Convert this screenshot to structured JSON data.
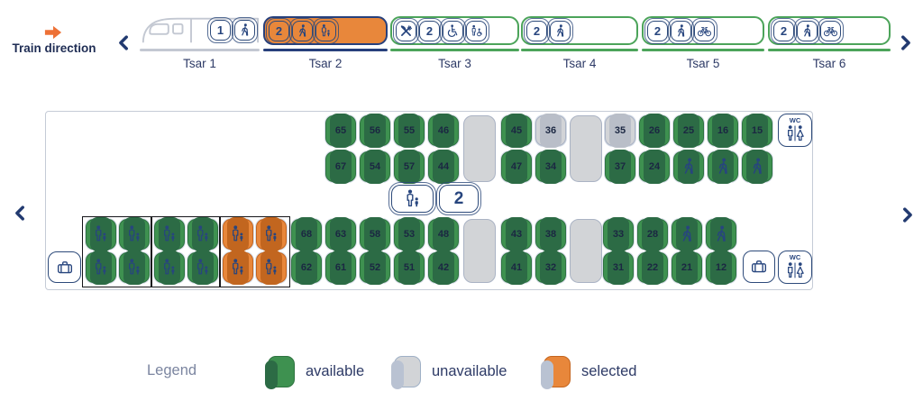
{
  "header": {
    "train_direction_label": "Train direction"
  },
  "colors": {
    "available": "#3E9150",
    "unavailable": "#D2D4D7",
    "selected": "#E8873B",
    "accent_orange": "#ED7136",
    "navy": "#27407C",
    "green_border": "#4CA45A"
  },
  "cars": [
    {
      "label": "Tsar 1",
      "state": "locomotive",
      "badges": [
        {
          "text": "1"
        },
        {
          "icon": "walker"
        }
      ]
    },
    {
      "label": "Tsar 2",
      "state": "selected",
      "badges": [
        {
          "text": "2"
        },
        {
          "icon": "walker"
        },
        {
          "icon": "adult-child"
        }
      ]
    },
    {
      "label": "Tsar 3",
      "state": "available",
      "badges": [
        {
          "icon": "restaurant"
        },
        {
          "text": "2"
        },
        {
          "icon": "wheelchair"
        },
        {
          "icon": "wheelchair-assist"
        }
      ]
    },
    {
      "label": "Tsar 4",
      "state": "available",
      "badges": [
        {
          "text": "2"
        },
        {
          "icon": "walker"
        }
      ]
    },
    {
      "label": "Tsar 5",
      "state": "available",
      "badges": [
        {
          "text": "2"
        },
        {
          "icon": "walker"
        },
        {
          "icon": "bicycle"
        }
      ]
    },
    {
      "label": "Tsar 6",
      "state": "available",
      "badges": [
        {
          "text": "2"
        },
        {
          "icon": "walker"
        },
        {
          "icon": "bicycle"
        }
      ]
    }
  ],
  "seat_map": {
    "class_badge_number": "2",
    "wc_label": "WC",
    "cells": [
      {
        "grid": "t",
        "row": 1,
        "col": 0,
        "type": "num",
        "num": "65",
        "state": "available"
      },
      {
        "grid": "t",
        "row": 1,
        "col": 1,
        "type": "num",
        "num": "56",
        "state": "available"
      },
      {
        "grid": "t",
        "row": 1,
        "col": 2,
        "type": "num",
        "num": "55",
        "state": "available"
      },
      {
        "grid": "t",
        "row": 1,
        "col": 3,
        "type": "num",
        "num": "46",
        "state": "available"
      },
      {
        "grid": "t",
        "row": 1,
        "col": 5,
        "type": "num",
        "num": "45",
        "state": "available"
      },
      {
        "grid": "t",
        "row": 1,
        "col": 6,
        "type": "num",
        "num": "36",
        "state": "unavailable"
      },
      {
        "grid": "t",
        "row": 1,
        "col": 8,
        "type": "num",
        "num": "35",
        "state": "unavailable"
      },
      {
        "grid": "t",
        "row": 1,
        "col": 9,
        "type": "num",
        "num": "26",
        "state": "available"
      },
      {
        "grid": "t",
        "row": 1,
        "col": 10,
        "type": "num",
        "num": "25",
        "state": "available"
      },
      {
        "grid": "t",
        "row": 1,
        "col": 11,
        "type": "num",
        "num": "16",
        "state": "available"
      },
      {
        "grid": "t",
        "row": 1,
        "col": 12,
        "type": "num",
        "num": "15",
        "state": "available"
      },
      {
        "grid": "t",
        "row": 2,
        "col": 0,
        "type": "num",
        "num": "67",
        "state": "available"
      },
      {
        "grid": "t",
        "row": 2,
        "col": 1,
        "type": "num",
        "num": "54",
        "state": "available"
      },
      {
        "grid": "t",
        "row": 2,
        "col": 2,
        "type": "num",
        "num": "57",
        "state": "available"
      },
      {
        "grid": "t",
        "row": 2,
        "col": 3,
        "type": "num",
        "num": "44",
        "state": "available"
      },
      {
        "grid": "t",
        "row": 2,
        "col": 5,
        "type": "num",
        "num": "47",
        "state": "available"
      },
      {
        "grid": "t",
        "row": 2,
        "col": 6,
        "type": "num",
        "num": "34",
        "state": "available"
      },
      {
        "grid": "t",
        "row": 2,
        "col": 8,
        "type": "num",
        "num": "37",
        "state": "available"
      },
      {
        "grid": "t",
        "row": 2,
        "col": 9,
        "type": "num",
        "num": "24",
        "state": "available"
      },
      {
        "grid": "t",
        "row": 2,
        "col": 10,
        "type": "walker",
        "state": "available"
      },
      {
        "grid": "t",
        "row": 2,
        "col": 11,
        "type": "walker",
        "state": "available"
      },
      {
        "grid": "t",
        "row": 2,
        "col": 12,
        "type": "walker",
        "state": "available"
      },
      {
        "grid": "t",
        "row": 1,
        "col": 4,
        "type": "block",
        "span": 2
      },
      {
        "grid": "t",
        "row": 1,
        "col": 7,
        "type": "block",
        "span": 2
      },
      {
        "grid": "f",
        "row": 3,
        "col": 0,
        "type": "family",
        "state": "available"
      },
      {
        "grid": "f",
        "row": 3,
        "col": 1,
        "type": "family",
        "state": "available"
      },
      {
        "grid": "f",
        "row": 3,
        "col": 2,
        "type": "family",
        "state": "available"
      },
      {
        "grid": "f",
        "row": 3,
        "col": 3,
        "type": "family",
        "state": "available"
      },
      {
        "grid": "f",
        "row": 3,
        "col": 4,
        "type": "family",
        "state": "selected"
      },
      {
        "grid": "f",
        "row": 3,
        "col": 5,
        "type": "family",
        "state": "selected"
      },
      {
        "grid": "f",
        "row": 4,
        "col": 0,
        "type": "family",
        "state": "available"
      },
      {
        "grid": "f",
        "row": 4,
        "col": 1,
        "type": "family",
        "state": "available"
      },
      {
        "grid": "f",
        "row": 4,
        "col": 2,
        "type": "family",
        "state": "available"
      },
      {
        "grid": "f",
        "row": 4,
        "col": 3,
        "type": "family",
        "state": "available"
      },
      {
        "grid": "f",
        "row": 4,
        "col": 4,
        "type": "family",
        "state": "selected"
      },
      {
        "grid": "f",
        "row": 4,
        "col": 5,
        "type": "family",
        "state": "selected"
      },
      {
        "grid": "b",
        "row": 3,
        "col": 0,
        "type": "num",
        "num": "68",
        "state": "available"
      },
      {
        "grid": "b",
        "row": 3,
        "col": 1,
        "type": "num",
        "num": "63",
        "state": "available"
      },
      {
        "grid": "b",
        "row": 3,
        "col": 2,
        "type": "num",
        "num": "58",
        "state": "available"
      },
      {
        "grid": "b",
        "row": 3,
        "col": 3,
        "type": "num",
        "num": "53",
        "state": "available"
      },
      {
        "grid": "b",
        "row": 3,
        "col": 4,
        "type": "num",
        "num": "48",
        "state": "available"
      },
      {
        "grid": "b",
        "row": 3,
        "col": 6,
        "type": "num",
        "num": "43",
        "state": "available"
      },
      {
        "grid": "b",
        "row": 3,
        "col": 7,
        "type": "num",
        "num": "38",
        "state": "available"
      },
      {
        "grid": "b",
        "row": 3,
        "col": 9,
        "type": "num",
        "num": "33",
        "state": "available"
      },
      {
        "grid": "b",
        "row": 3,
        "col": 10,
        "type": "num",
        "num": "28",
        "state": "available"
      },
      {
        "grid": "b",
        "row": 3,
        "col": 11,
        "type": "walker",
        "state": "available"
      },
      {
        "grid": "b",
        "row": 3,
        "col": 12,
        "type": "walker",
        "state": "available"
      },
      {
        "grid": "b",
        "row": 4,
        "col": 0,
        "type": "num",
        "num": "62",
        "state": "available"
      },
      {
        "grid": "b",
        "row": 4,
        "col": 1,
        "type": "num",
        "num": "61",
        "state": "available"
      },
      {
        "grid": "b",
        "row": 4,
        "col": 2,
        "type": "num",
        "num": "52",
        "state": "available"
      },
      {
        "grid": "b",
        "row": 4,
        "col": 3,
        "type": "num",
        "num": "51",
        "state": "available"
      },
      {
        "grid": "b",
        "row": 4,
        "col": 4,
        "type": "num",
        "num": "42",
        "state": "available"
      },
      {
        "grid": "b",
        "row": 4,
        "col": 6,
        "type": "num",
        "num": "41",
        "state": "available"
      },
      {
        "grid": "b",
        "row": 4,
        "col": 7,
        "type": "num",
        "num": "32",
        "state": "available"
      },
      {
        "grid": "b",
        "row": 4,
        "col": 9,
        "type": "num",
        "num": "31",
        "state": "available"
      },
      {
        "grid": "b",
        "row": 4,
        "col": 10,
        "type": "num",
        "num": "22",
        "state": "available"
      },
      {
        "grid": "b",
        "row": 4,
        "col": 11,
        "type": "num",
        "num": "21",
        "state": "available"
      },
      {
        "grid": "b",
        "row": 4,
        "col": 12,
        "type": "num",
        "num": "12",
        "state": "available"
      },
      {
        "grid": "b",
        "row": 3,
        "col": 5,
        "type": "block",
        "span": 2
      },
      {
        "grid": "b",
        "row": 3,
        "col": 8,
        "type": "block",
        "span": 2
      }
    ]
  },
  "legend": {
    "title": "Legend",
    "items": [
      {
        "label": "available",
        "state": "available"
      },
      {
        "label": "unavailable",
        "state": "unavailable"
      },
      {
        "label": "selected",
        "state": "selected"
      }
    ]
  }
}
